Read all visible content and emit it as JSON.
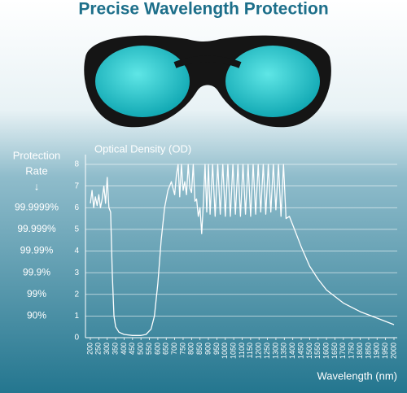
{
  "chart_data": {
    "type": "line",
    "title": "Precise Wavelength Protection",
    "y_label": "Optical Density (OD)",
    "x_label": "Wavelength (nm)",
    "protection_label": [
      "Protection",
      "Rate",
      "↓"
    ],
    "protection_rates": [
      "99.9999%",
      "99.999%",
      "99.99%",
      "99.9%",
      "99%",
      "90%"
    ],
    "color": "#ffffff",
    "grid": true,
    "xlim": [
      200,
      2000
    ],
    "ylim": [
      0,
      8
    ],
    "yticks": [
      0,
      1,
      2,
      3,
      4,
      5,
      6,
      7,
      8
    ],
    "xticks": [
      200,
      250,
      300,
      350,
      400,
      450,
      500,
      550,
      600,
      650,
      700,
      750,
      800,
      850,
      900,
      950,
      1000,
      1050,
      1100,
      1150,
      1200,
      1250,
      1300,
      1350,
      1400,
      1450,
      1500,
      1550,
      1600,
      1650,
      1700,
      1750,
      1800,
      1850,
      1900,
      1950,
      2000
    ],
    "x": [
      200,
      210,
      220,
      230,
      240,
      250,
      260,
      270,
      280,
      290,
      300,
      310,
      320,
      330,
      340,
      350,
      370,
      400,
      450,
      500,
      530,
      560,
      580,
      600,
      620,
      640,
      660,
      680,
      700,
      710,
      720,
      730,
      740,
      750,
      760,
      770,
      780,
      790,
      800,
      810,
      820,
      830,
      840,
      850,
      860,
      870,
      880,
      890,
      900,
      910,
      925,
      940,
      955,
      970,
      985,
      1000,
      1015,
      1030,
      1045,
      1060,
      1075,
      1090,
      1105,
      1120,
      1135,
      1150,
      1165,
      1180,
      1195,
      1210,
      1225,
      1240,
      1255,
      1270,
      1285,
      1300,
      1315,
      1330,
      1345,
      1360,
      1380,
      1400,
      1450,
      1500,
      1550,
      1600,
      1700,
      1800,
      1900,
      2000
    ],
    "values": [
      6.2,
      6.8,
      6.0,
      6.5,
      6.1,
      6.6,
      6.0,
      6.4,
      7.0,
      6.2,
      7.4,
      6.0,
      5.8,
      3.0,
      1.0,
      0.5,
      0.25,
      0.15,
      0.1,
      0.1,
      0.15,
      0.4,
      1.0,
      2.5,
      4.5,
      6.0,
      6.8,
      7.2,
      6.6,
      7.5,
      8,
      6.5,
      8,
      6.8,
      7.2,
      6.6,
      8,
      6.9,
      6.7,
      8,
      6.3,
      6.4,
      5.6,
      6.0,
      4.8,
      6.2,
      8,
      5.8,
      8,
      5.7,
      8,
      5.6,
      8,
      5.7,
      8,
      5.6,
      8,
      5.6,
      8,
      5.7,
      8,
      5.6,
      8,
      5.7,
      8,
      5.6,
      8,
      5.7,
      8,
      5.8,
      8,
      5.7,
      8,
      5.8,
      8,
      5.9,
      8,
      5.6,
      8,
      5.5,
      5.6,
      5.2,
      4.2,
      3.3,
      2.7,
      2.2,
      1.6,
      1.2,
      0.9,
      0.6
    ]
  }
}
